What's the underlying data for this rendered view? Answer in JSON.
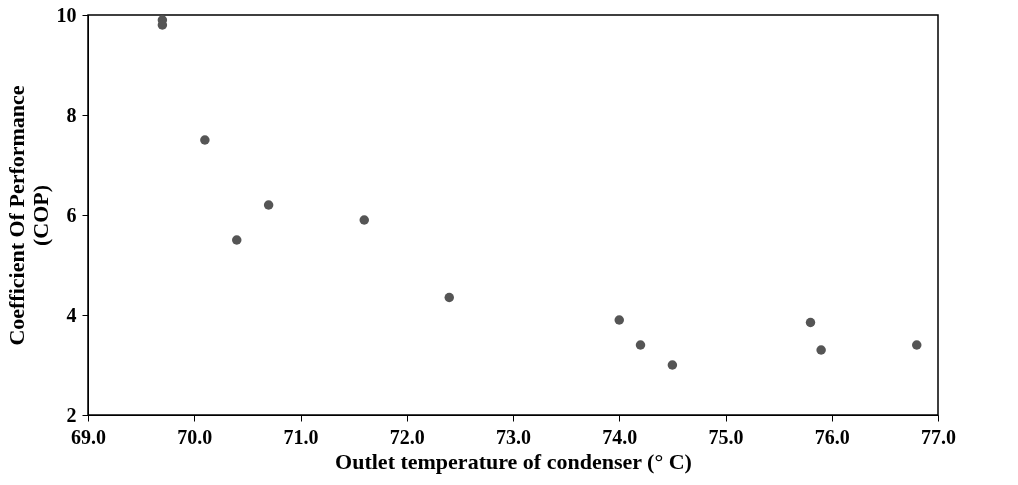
{
  "chart_data": {
    "type": "scatter",
    "xlabel": "Outlet temperature of condenser (° C)",
    "ylabel": [
      "Coefficient Of Performance",
      "(COP)"
    ],
    "x": [
      69.7,
      69.7,
      70.1,
      70.4,
      70.7,
      71.6,
      72.4,
      74.0,
      74.2,
      74.5,
      75.8,
      75.9,
      76.8
    ],
    "series": [
      {
        "color": "#555555",
        "values": [
          9.9,
          9.8,
          7.5,
          5.5,
          6.2,
          5.9,
          4.35,
          3.9,
          3.4,
          3.0,
          3.85,
          3.3,
          3.4
        ]
      }
    ],
    "xlim": [
      69,
      77
    ],
    "xticks": [
      {
        "value": 69,
        "label": "69.0"
      },
      {
        "value": 70,
        "label": "70.0"
      },
      {
        "value": 71,
        "label": "71.0"
      },
      {
        "value": 72,
        "label": "72.0"
      },
      {
        "value": 73,
        "label": "73.0"
      },
      {
        "value": 74,
        "label": "74.0"
      },
      {
        "value": 75,
        "label": "75.0"
      },
      {
        "value": 76,
        "label": "76.0"
      },
      {
        "value": 77,
        "label": "77.0"
      }
    ],
    "ylim": [
      2,
      10
    ],
    "yticks": [
      2,
      4,
      6,
      8,
      10
    ],
    "grid": false,
    "legend": false,
    "marker": "circle"
  }
}
